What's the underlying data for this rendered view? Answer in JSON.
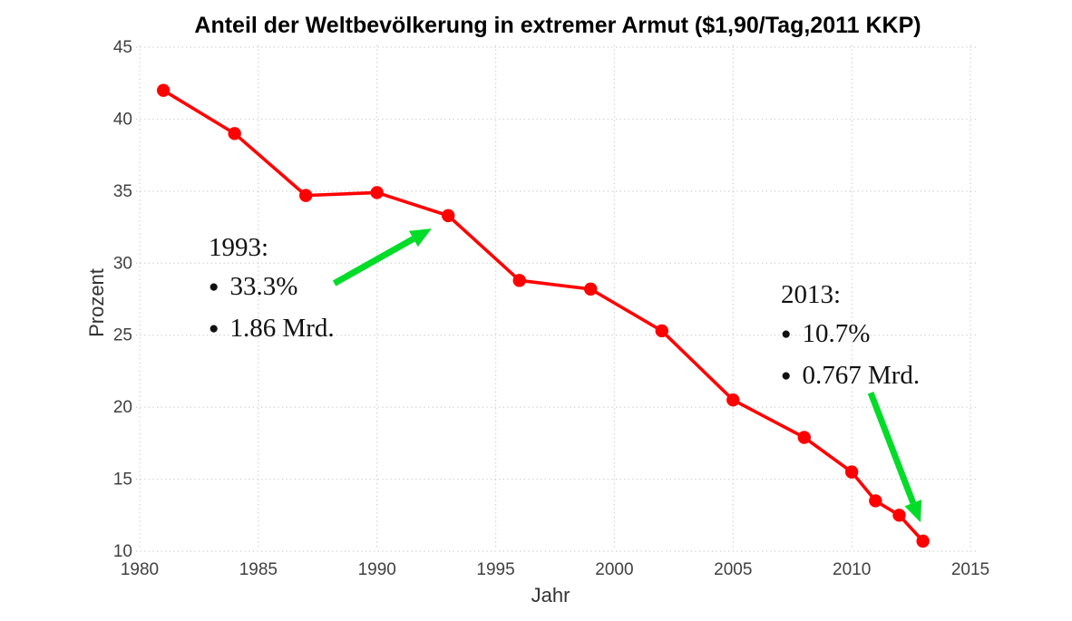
{
  "chart_data": {
    "type": "line",
    "title": "Anteil der Weltbevölkerung in extremer Armut ($1,90/Tag,2011 KKP)",
    "xlabel": "Jahr",
    "ylabel": "Prozent",
    "xlim": [
      1980,
      2015
    ],
    "ylim": [
      10,
      45
    ],
    "xticks": [
      "1980",
      "1985",
      "1990",
      "1995",
      "2000",
      "2005",
      "2010",
      "2015"
    ],
    "yticks": [
      "10",
      "15",
      "20",
      "25",
      "30",
      "35",
      "40",
      "45"
    ],
    "grid": "dotted both axes",
    "legend": "none",
    "series": [
      {
        "name": "Anteil der Weltbevölkerung in extremer Armut",
        "color": "#ff0000",
        "marker": "circle",
        "x": [
          1981,
          1984,
          1987,
          1990,
          1993,
          1996,
          1999,
          2002,
          2005,
          2008,
          2010,
          2011,
          2012,
          2013
        ],
        "values": [
          42.0,
          39.0,
          34.7,
          34.9,
          33.3,
          28.8,
          28.2,
          25.3,
          20.5,
          17.9,
          15.5,
          13.5,
          12.5,
          10.7
        ]
      }
    ],
    "annotations": [
      {
        "heading": "1993:",
        "bullets": [
          "33.3%",
          "1.86 Mrd."
        ],
        "arrow": {
          "from": [
            1988.2,
            28.6
          ],
          "to": [
            1992.3,
            32.4
          ]
        }
      },
      {
        "heading": "2013:",
        "bullets": [
          "10.7%",
          "0.767 Mrd."
        ],
        "arrow": {
          "from": [
            2010.8,
            21.0
          ],
          "to": [
            2012.9,
            12.0
          ]
        }
      }
    ]
  },
  "colors": {
    "series_red": "#ff0000",
    "arrow_green": "#00dc28",
    "grid_gray": "#cbcbcb",
    "tick_label": "#404040",
    "axis_label": "#333333",
    "title": "#000000",
    "background": "#ffffff",
    "annotation_text": "#111111"
  }
}
